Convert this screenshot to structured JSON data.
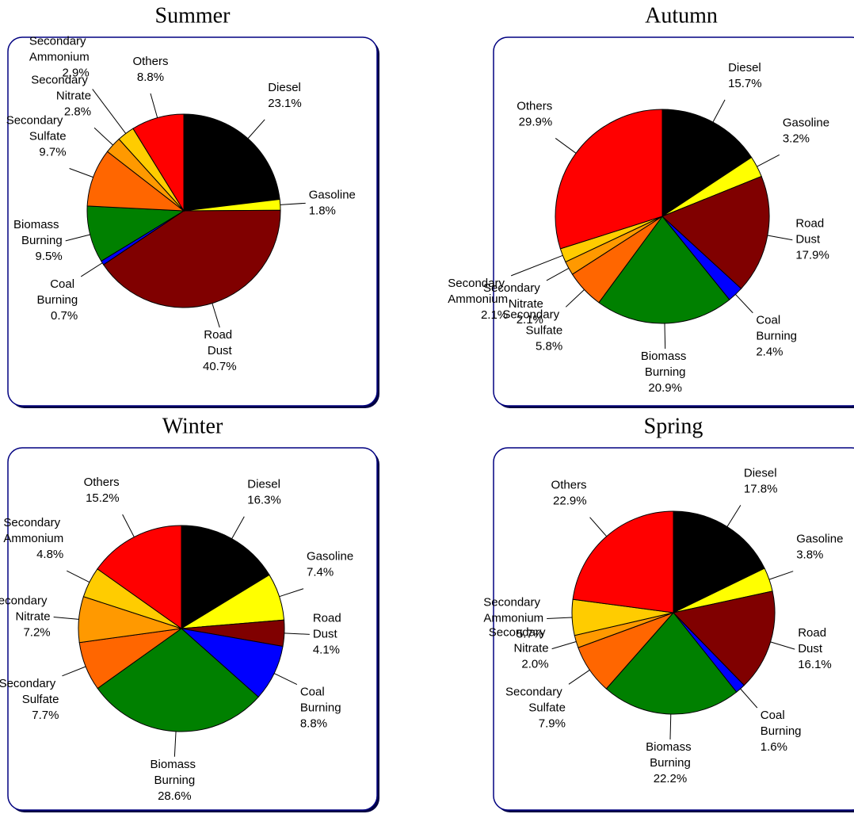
{
  "chart_data": [
    {
      "type": "pie",
      "title": "Summer",
      "categories": [
        "Diesel",
        "Gasoline",
        "Road Dust",
        "Coal Burning",
        "Biomass Burning",
        "Secondary Sulfate",
        "Secondary Nitrate",
        "Secondary Ammonium",
        "Others"
      ],
      "values": [
        23.1,
        1.8,
        40.7,
        0.7,
        9.5,
        9.7,
        2.8,
        2.9,
        8.8
      ],
      "value_labels": [
        "23.1%",
        "1.8%",
        "40.7%",
        "0.7%",
        "9.5%",
        "9.7%",
        "2.8%",
        "2.9%",
        "8.8%"
      ],
      "colors": [
        "#000000",
        "#ffff00",
        "#800000",
        "#0000ff",
        "#008000",
        "#ff6600",
        "#ff9900",
        "#ffcc00",
        "#ff0000"
      ]
    },
    {
      "type": "pie",
      "title": "Autumn",
      "categories": [
        "Diesel",
        "Gasoline",
        "Road Dust",
        "Coal Burning",
        "Biomass Burning",
        "Secondary Sulfate",
        "Secondary Nitrate",
        "Secondary Ammonium",
        "Others"
      ],
      "values": [
        15.7,
        3.2,
        17.9,
        2.4,
        20.9,
        5.8,
        2.1,
        2.1,
        29.9
      ],
      "value_labels": [
        "15.7%",
        "3.2%",
        "17.9%",
        "2.4%",
        "20.9%",
        "5.8%",
        "2.1%",
        "2.1%",
        "29.9%"
      ],
      "colors": [
        "#000000",
        "#ffff00",
        "#800000",
        "#0000ff",
        "#008000",
        "#ff6600",
        "#ff9900",
        "#ffcc00",
        "#ff0000"
      ]
    },
    {
      "type": "pie",
      "title": "Winter",
      "categories": [
        "Diesel",
        "Gasoline",
        "Road Dust",
        "Coal Burning",
        "Biomass Burning",
        "Secondary Sulfate",
        "Secondary Nitrate",
        "Secondary Ammonium",
        "Others"
      ],
      "values": [
        16.3,
        7.4,
        4.1,
        8.8,
        28.6,
        7.7,
        7.2,
        4.8,
        15.2
      ],
      "value_labels": [
        "16.3%",
        "7.4%",
        "4.1%",
        "8.8%",
        "28.6%",
        "7.7%",
        "7.2%",
        "4.8%",
        "15.2%"
      ],
      "colors": [
        "#000000",
        "#ffff00",
        "#800000",
        "#0000ff",
        "#008000",
        "#ff6600",
        "#ff9900",
        "#ffcc00",
        "#ff0000"
      ]
    },
    {
      "type": "pie",
      "title": "Spring",
      "categories": [
        "Diesel",
        "Gasoline",
        "Road Dust",
        "Coal Burning",
        "Biomass Burning",
        "Secondary Sulfate",
        "Secondary Nitrate",
        "Secondary Ammonium",
        "Others"
      ],
      "values": [
        17.8,
        3.8,
        16.1,
        1.6,
        22.2,
        7.9,
        2.0,
        5.7,
        22.9
      ],
      "value_labels": [
        "17.8%",
        "3.8%",
        "16.1%",
        "1.6%",
        "22.2%",
        "7.9%",
        "2.0%",
        "5.7%",
        "22.9%"
      ],
      "colors": [
        "#000000",
        "#ffff00",
        "#800000",
        "#0000ff",
        "#008000",
        "#ff6600",
        "#ff9900",
        "#ffcc00",
        "#ff0000"
      ]
    }
  ]
}
